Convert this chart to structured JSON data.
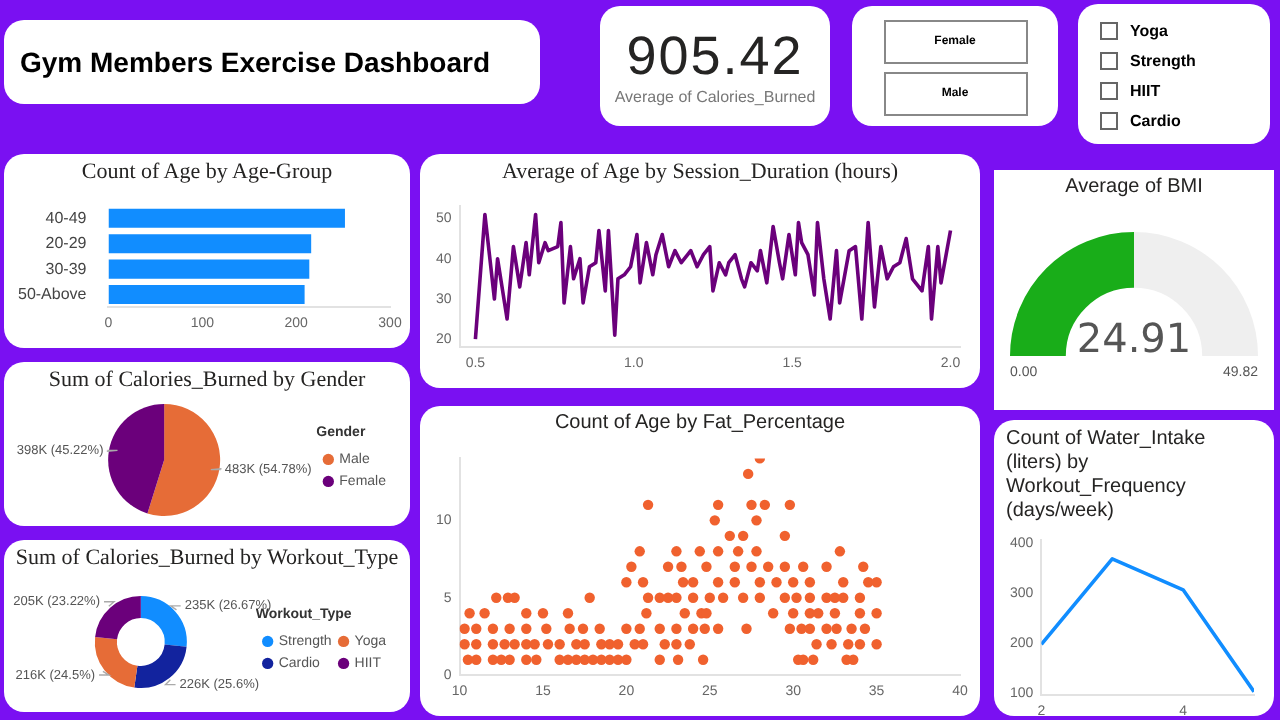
{
  "chart_data": [
    {
      "type": "other",
      "title": "Gym Members Exercise Dashboard"
    },
    {
      "type": "other",
      "annotations": [
        "905.42",
        "Average of Calories_Burned"
      ]
    },
    {
      "type": "other",
      "annotations": [
        "Female",
        "Male"
      ]
    },
    {
      "type": "other",
      "annotations": [
        "Yoga",
        "Strength",
        "HIIT",
        "Cardio"
      ]
    },
    {
      "type": "bar",
      "orientation": "horizontal",
      "title": "Count of Age by Age-Group",
      "categories": [
        "40-49",
        "20-29",
        "30-39",
        "50-Above"
      ],
      "values": [
        252,
        216,
        214,
        209
      ],
      "color": "#118dff",
      "xlim": [
        0,
        300
      ],
      "xticks": [
        0,
        100,
        200,
        300
      ]
    },
    {
      "type": "line",
      "title": "Average of Age by Session_Duration (hours)",
      "color": "#6b007b",
      "xlim": [
        0.45,
        2.03
      ],
      "xticks": [
        0.5,
        {
          "value": 1,
          "label": "1.0"
        },
        1.5,
        {
          "value": 2,
          "label": "2.0"
        }
      ],
      "ylim": [
        18,
        53
      ],
      "yticks": [
        20,
        30,
        40,
        50
      ],
      "x": [
        0.5,
        0.53,
        0.56,
        0.57,
        0.6,
        0.62,
        0.64,
        0.66,
        0.67,
        0.69,
        0.7,
        0.72,
        0.73,
        0.76,
        0.77,
        0.78,
        0.8,
        0.81,
        0.83,
        0.84,
        0.86,
        0.88,
        0.89,
        0.91,
        0.92,
        0.94,
        0.95,
        0.97,
        0.99,
        1.01,
        1.02,
        1.04,
        1.06,
        1.07,
        1.09,
        1.11,
        1.13,
        1.15,
        1.16,
        1.18,
        1.2,
        1.22,
        1.24,
        1.25,
        1.27,
        1.29,
        1.3,
        1.32,
        1.34,
        1.35,
        1.37,
        1.39,
        1.4,
        1.42,
        1.44,
        1.46,
        1.47,
        1.49,
        1.51,
        1.52,
        1.53,
        1.55,
        1.57,
        1.58,
        1.6,
        1.62,
        1.64,
        1.65,
        1.68,
        1.7,
        1.72,
        1.74,
        1.76,
        1.78,
        1.8,
        1.82,
        1.84,
        1.86,
        1.88,
        1.89,
        1.91,
        1.93,
        1.94,
        1.96,
        1.97,
        2.0
      ],
      "values": [
        20,
        51,
        30,
        40,
        25,
        43,
        33,
        44,
        36,
        51,
        39,
        44,
        42,
        43,
        49,
        29,
        43,
        35,
        40,
        29,
        38,
        39,
        47,
        32,
        47,
        21,
        35,
        36,
        38,
        46,
        34,
        44,
        36,
        41,
        46,
        38,
        42,
        39,
        40,
        42,
        38,
        41,
        43,
        32,
        39,
        36,
        39,
        41,
        35,
        33,
        39,
        37,
        42,
        34,
        48,
        39,
        35,
        46,
        36,
        49,
        44,
        41,
        31,
        49,
        35,
        25,
        42,
        29,
        42,
        43,
        25,
        49,
        28,
        43,
        35,
        38,
        39,
        45,
        35,
        34,
        32,
        43,
        25,
        43,
        34,
        47
      ]
    },
    {
      "type": "donut",
      "title": "Average of BMI",
      "categories": [
        null,
        null
      ],
      "values": [
        50,
        50
      ],
      "colors": [
        "#19ad19",
        "#efefef"
      ],
      "annotations": [
        "24.91",
        "0.00",
        "49.82"
      ]
    },
    {
      "type": "pie",
      "title": "Sum of Calories_Burned by Gender",
      "categories": [
        "Male",
        "Female"
      ],
      "values": [
        483000,
        398000
      ],
      "colors": [
        "#e66c37",
        "#6b007b"
      ],
      "value_labels": [
        "483K (54.78%)",
        "398K (45.22%)"
      ],
      "legend": "right",
      "legend_title": "Gender"
    },
    {
      "type": "scatter",
      "title": "Count of Age by Fat_Percentage",
      "color": "#f0612e",
      "xlim": [
        10,
        40
      ],
      "xticks": [
        10,
        15,
        20,
        25,
        30,
        35,
        40
      ],
      "ylim": [
        0,
        14
      ],
      "yticks": [
        0,
        5,
        10
      ],
      "x": [
        10.5,
        11,
        12,
        12.5,
        13,
        14,
        14.6,
        16,
        16.5,
        17,
        17.5,
        18,
        18.5,
        19,
        19.5,
        20,
        22,
        23.1,
        24.6,
        30.3,
        30.6,
        31.2,
        33.2,
        33.6,
        10.3,
        11,
        12,
        12.7,
        13.3,
        14,
        14.5,
        15.3,
        16,
        17,
        17.5,
        18.5,
        19,
        19.5,
        20.5,
        21,
        22.3,
        23,
        23.8,
        31.4,
        32.3,
        33.3,
        34,
        35,
        10.3,
        11,
        12,
        13,
        14,
        15.2,
        16.6,
        17.4,
        18.4,
        20,
        20.8,
        22,
        23,
        24,
        24.7,
        25.5,
        27.2,
        29.8,
        30.5,
        31,
        32,
        32.6,
        33.5,
        34.3,
        10.6,
        11.5,
        14,
        15,
        16.5,
        21.2,
        23.5,
        24.5,
        24.8,
        28.8,
        30,
        31,
        31.5,
        32.5,
        34,
        35,
        12.2,
        12.9,
        13.3,
        17.8,
        21.3,
        22,
        22.5,
        23,
        24,
        25,
        25.8,
        27,
        28,
        29.5,
        30.2,
        31,
        32,
        32.5,
        33,
        34,
        20,
        21,
        23.4,
        24,
        25.5,
        26.5,
        28,
        29,
        30,
        31,
        33,
        34.5,
        35,
        20.3,
        22.5,
        23.3,
        24.8,
        26.5,
        27.5,
        28.5,
        29.5,
        30.6,
        32,
        34.2,
        20.8,
        23,
        24.4,
        25.5,
        26.7,
        27.8,
        32.8,
        26.2,
        27,
        29.5,
        25.3,
        27.8,
        21.3,
        25.5,
        27.5,
        28.3,
        29.8,
        27.3,
        28
      ],
      "values": [
        1,
        1,
        1,
        1,
        1,
        1,
        1,
        1,
        1,
        1,
        1,
        1,
        1,
        1,
        1,
        1,
        1,
        1,
        1,
        1,
        1,
        1,
        1,
        1,
        2,
        2,
        2,
        2,
        2,
        2,
        2,
        2,
        2,
        2,
        2,
        2,
        2,
        2,
        2,
        2,
        2,
        2,
        2,
        2,
        2,
        2,
        2,
        2,
        3,
        3,
        3,
        3,
        3,
        3,
        3,
        3,
        3,
        3,
        3,
        3,
        3,
        3,
        3,
        3,
        3,
        3,
        3,
        3,
        3,
        3,
        3,
        3,
        4,
        4,
        4,
        4,
        4,
        4,
        4,
        4,
        4,
        4,
        4,
        4,
        4,
        4,
        4,
        4,
        5,
        5,
        5,
        5,
        5,
        5,
        5,
        5,
        5,
        5,
        5,
        5,
        5,
        5,
        5,
        5,
        5,
        5,
        5,
        5,
        6,
        6,
        6,
        6,
        6,
        6,
        6,
        6,
        6,
        6,
        6,
        6,
        6,
        7,
        7,
        7,
        7,
        7,
        7,
        7,
        7,
        7,
        7,
        7,
        8,
        8,
        8,
        8,
        8,
        8,
        8,
        9,
        9,
        9,
        10,
        10,
        11,
        11,
        11,
        11,
        11,
        13,
        14
      ]
    },
    {
      "type": "line",
      "title": "Count of Water_Intake (liters) by Workout_Frequency (days/week)",
      "color": "#118dff",
      "x": [
        2,
        3,
        4,
        5
      ],
      "values": [
        197,
        368,
        306,
        102
      ],
      "xlim": [
        2,
        5
      ],
      "xticks": [
        2,
        4
      ],
      "ylim": [
        95,
        405
      ],
      "yticks": [
        100,
        200,
        300,
        400
      ]
    },
    {
      "type": "donut",
      "title": "Sum of Calories_Burned by Workout_Type",
      "categories": [
        "Strength",
        "Cardio",
        "Yoga",
        "HIIT"
      ],
      "values": [
        235000,
        226000,
        216000,
        205000
      ],
      "colors": [
        "#118dff",
        "#12239e",
        "#e66c37",
        "#6b007b"
      ],
      "value_labels": [
        "235K (26.67%)",
        "226K (25.6%)",
        "216K (24.5%)",
        "205K (23.22%)"
      ],
      "legend": "right",
      "legend_title": "Workout_Type"
    }
  ]
}
